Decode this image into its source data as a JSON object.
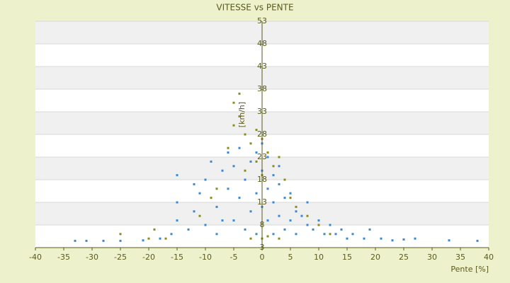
{
  "chart_data": {
    "type": "scatter",
    "title": "VITESSE vs PENTE",
    "x_label": "Pente [%]",
    "y_label": "[km/h]",
    "xlim": [
      -40,
      40
    ],
    "xticks": [
      -40,
      -35,
      -30,
      -25,
      -20,
      -15,
      -10,
      -5,
      0,
      5,
      10,
      15,
      20,
      25,
      30,
      35,
      40
    ],
    "ylim": [
      3,
      53
    ],
    "yticks": [
      3,
      8,
      13,
      18,
      23,
      28,
      33,
      38,
      43,
      48,
      53
    ],
    "series": [
      {
        "color": "#3a87d4",
        "x": [
          -33,
          -31,
          -28,
          -25,
          -21,
          -18,
          -16,
          -15,
          -15,
          -15,
          -13,
          -12,
          -11,
          -10,
          -10,
          -9,
          -8,
          -8,
          -7,
          -6,
          -6,
          -5,
          -5,
          -4,
          -4,
          -3,
          -3,
          -2,
          -2,
          -1,
          -1,
          -1,
          0,
          0,
          0,
          1,
          1,
          1,
          2,
          2,
          2,
          3,
          3,
          4,
          4,
          5,
          5,
          6,
          6,
          7,
          8,
          8,
          9,
          10,
          11,
          12,
          13,
          14,
          15,
          16,
          18,
          19,
          21,
          23,
          25,
          27,
          33,
          38,
          -12,
          -7,
          3
        ],
        "values": [
          4.5,
          4.5,
          4.5,
          4.5,
          4.6,
          5,
          6,
          9,
          13,
          19,
          7,
          11,
          15,
          18,
          8,
          22,
          12,
          6,
          20,
          16,
          24,
          9,
          21,
          14,
          25,
          18,
          7,
          22,
          11,
          24,
          15,
          6,
          20,
          12,
          26,
          23,
          9,
          16,
          19,
          13,
          6,
          17,
          10,
          14,
          7,
          15,
          9,
          11,
          6,
          10,
          8,
          13,
          7,
          9,
          6,
          8,
          6,
          7,
          5,
          6,
          5,
          7,
          5,
          4.6,
          4.8,
          5,
          4.6,
          4.5,
          17,
          9,
          21
        ]
      },
      {
        "color": "#8b8b1a",
        "x": [
          -25,
          -20,
          -19,
          -17,
          -11,
          -8,
          -6,
          -5,
          -5,
          -4,
          -4,
          -3,
          -2,
          -1,
          -1,
          0,
          0,
          0,
          1,
          1,
          2,
          3,
          4,
          5,
          6,
          8,
          10,
          12,
          -2,
          3,
          -9,
          -3
        ],
        "values": [
          6,
          5,
          7,
          5,
          10,
          16,
          25,
          30,
          35,
          37,
          32,
          28,
          26,
          29,
          22,
          27,
          19,
          5,
          24,
          5.5,
          21,
          23,
          18,
          14,
          12,
          10,
          8,
          6,
          5,
          5,
          14,
          20
        ]
      }
    ]
  }
}
